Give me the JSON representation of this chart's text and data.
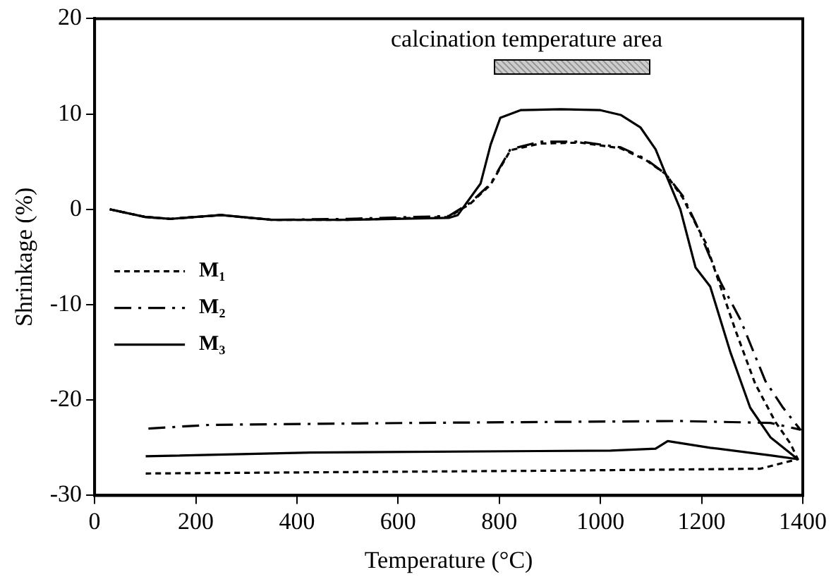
{
  "chart_data": {
    "type": "line",
    "xlabel": "Temperature (°C)",
    "ylabel": "Shrinkage (%)",
    "xlim": [
      0,
      1400
    ],
    "xticks": [
      0,
      200,
      400,
      600,
      800,
      1000,
      1200,
      1400
    ],
    "ylim": [
      -30,
      20
    ],
    "yticks": [
      -30,
      -20,
      -10,
      0,
      10,
      20
    ],
    "grid": false,
    "legend": "left",
    "marker": "none",
    "annotations": [
      "calcination temperature area"
    ],
    "series": [
      {
        "name": "M₁",
        "color": "#000000",
        "line_style": "dotted",
        "x": [
          30,
          100,
          150,
          250,
          350,
          500,
          700,
          743,
          783,
          822,
          881,
          960,
          1040,
          1089,
          1129,
          1163,
          1188,
          1208,
          1227,
          1267,
          1306,
          1346,
          1376,
          1390,
          1316,
          921,
          101
        ],
        "values": [
          0,
          -0.8,
          -1,
          -0.6,
          -1.1,
          -1.1,
          -0.8,
          0.6,
          2.6,
          6.2,
          6.9,
          7,
          6.4,
          5.2,
          3.7,
          1.2,
          -1.5,
          -3.5,
          -6.5,
          -12.7,
          -18.3,
          -22.3,
          -24.6,
          -26.2,
          -27.2,
          -27.4,
          -27.7
        ]
      },
      {
        "name": "M₂",
        "color": "#000000",
        "line_style": "dashed",
        "x": [
          30,
          100,
          150,
          250,
          350,
          500,
          700,
          743,
          783,
          822,
          881,
          960,
          1040,
          1089,
          1129,
          1163,
          1188,
          1237,
          1277,
          1326,
          1361,
          1395,
          1336,
          1158,
          624,
          229,
          101
        ],
        "values": [
          0,
          -0.8,
          -1,
          -0.6,
          -1.1,
          -1,
          -0.7,
          0.7,
          2.7,
          6.3,
          7.1,
          7.1,
          6.5,
          5.3,
          3.7,
          1.4,
          -1.4,
          -7.6,
          -11.6,
          -18,
          -20.8,
          -23.1,
          -22.4,
          -22.2,
          -22.4,
          -22.6,
          -23
        ]
      },
      {
        "name": "M₃",
        "color": "#000000",
        "line_style": "solid",
        "x": [
          30,
          100,
          150,
          250,
          350,
          500,
          700,
          718,
          763,
          783,
          802,
          842,
          921,
          1000,
          1040,
          1079,
          1109,
          1129,
          1158,
          1188,
          1217,
          1257,
          1296,
          1336,
          1390,
          1336,
          1217,
          1133,
          1109,
          1020,
          427,
          101
        ],
        "values": [
          0,
          -0.8,
          -1,
          -0.6,
          -1.1,
          -1.1,
          -0.9,
          -0.6,
          2.7,
          6.8,
          9.6,
          10.4,
          10.5,
          10.4,
          9.9,
          8.6,
          6.3,
          3.7,
          0,
          -6.1,
          -8.1,
          -15,
          -20.8,
          -23.9,
          -26.2,
          -25.8,
          -25,
          -24.3,
          -25.1,
          -25.3,
          -25.5,
          -25.9
        ]
      }
    ]
  }
}
